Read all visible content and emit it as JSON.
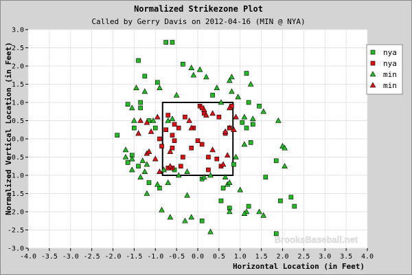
{
  "chart_data": {
    "type": "scatter",
    "title": "Normalized Strikezone Plot",
    "subtitle": "Called by Gerry Davis on 2012-04-16 (MIN @ NYA)",
    "xlabel": "Horizontal Location (in Feet)",
    "ylabel": "Normalized Vertical Location (in Feet)",
    "xlim": [
      -4.0,
      4.0
    ],
    "ylim": [
      -3.0,
      3.0
    ],
    "x_ticks": [
      -4.0,
      -3.5,
      -3.0,
      -2.5,
      -2.0,
      -1.5,
      -1.0,
      -0.5,
      0.0,
      0.5,
      1.0,
      1.5,
      2.0,
      2.5,
      3.0,
      3.5,
      4.0
    ],
    "x_tick_labels": [
      "-4.0",
      "-3.5",
      "-3.0",
      "-2.5",
      "-2.0",
      "-1.5",
      "-1.0",
      "-0.5",
      "0.0",
      "0.5",
      "1.0",
      "1.5",
      "2.0",
      "2.5",
      "3.0",
      "3.5",
      "4.0"
    ],
    "y_ticks": [
      3.0,
      2.5,
      2.0,
      1.5,
      1.0,
      0.5,
      0.0,
      -0.5,
      -1.0,
      -1.5,
      -2.0,
      -2.5,
      -3.0
    ],
    "y_tick_labels": [
      "3.0",
      "2.5",
      "2.0",
      "1.5",
      "1.0",
      "0.5",
      "0.0",
      "-0.5",
      "-1.0",
      "-1.5",
      "-2.0",
      "-2.5",
      "-3.0"
    ],
    "grid": true,
    "legend_position": "top-right",
    "watermark": "BrooksBaseball.net",
    "strike_zone": {
      "x": [
        -0.83,
        0.83
      ],
      "y": [
        -1.0,
        1.0
      ]
    },
    "series": [
      {
        "name": "nya",
        "marker": "square",
        "color": "#22bb22",
        "points": [
          [
            -0.75,
            2.65
          ],
          [
            -0.6,
            2.65
          ],
          [
            -1.4,
            2.15
          ],
          [
            -1.25,
            1.72
          ],
          [
            -0.95,
            1.55
          ],
          [
            -0.35,
            2.05
          ],
          [
            0.35,
            1.2
          ],
          [
            1.15,
            1.8
          ],
          [
            1.2,
            1.0
          ],
          [
            1.45,
            0.9
          ],
          [
            -1.65,
            0.95
          ],
          [
            -1.35,
            1.0
          ],
          [
            -1.35,
            0.85
          ],
          [
            -1.15,
            0.5
          ],
          [
            -1.0,
            0.3
          ],
          [
            -1.5,
            0.3
          ],
          [
            -1.9,
            0.1
          ],
          [
            1.05,
            0.45
          ],
          [
            1.15,
            0.3
          ],
          [
            1.25,
            -0.1
          ],
          [
            0.85,
            -0.7
          ],
          [
            1.85,
            -0.6
          ],
          [
            -1.55,
            -0.45
          ],
          [
            -1.4,
            -0.75
          ],
          [
            -1.15,
            -1.2
          ],
          [
            -0.55,
            -0.85
          ],
          [
            -0.9,
            -1.35
          ],
          [
            0.1,
            -1.1
          ],
          [
            0.6,
            -1.35
          ],
          [
            1.6,
            -1.05
          ],
          [
            1.95,
            -1.7
          ],
          [
            2.2,
            -1.6
          ],
          [
            2.28,
            -1.85
          ],
          [
            1.2,
            -1.85
          ],
          [
            0.75,
            -1.9
          ],
          [
            0.55,
            -1.7
          ],
          [
            0.1,
            -2.25
          ],
          [
            1.85,
            -2.6
          ],
          [
            -1.65,
            -0.65
          ],
          [
            1.3,
            0.4
          ]
        ]
      },
      {
        "name": "nya",
        "marker": "square",
        "color": "#dd1111",
        "points": [
          [
            -0.7,
            0.65
          ],
          [
            -0.55,
            0.4
          ],
          [
            -0.45,
            0.3
          ],
          [
            -0.6,
            0.1
          ],
          [
            -0.9,
            0.0
          ],
          [
            -0.85,
            -0.2
          ],
          [
            -0.3,
            0.6
          ],
          [
            0.05,
            0.9
          ],
          [
            0.1,
            0.85
          ],
          [
            0.15,
            0.7
          ],
          [
            0.5,
            0.6
          ],
          [
            0.8,
            0.9
          ],
          [
            0.75,
            0.3
          ],
          [
            0.65,
            0.15
          ],
          [
            -0.1,
            0.3
          ],
          [
            0.0,
            -0.05
          ],
          [
            -0.55,
            -0.05
          ],
          [
            -0.6,
            -0.25
          ],
          [
            -0.35,
            -0.5
          ],
          [
            -0.15,
            -0.25
          ],
          [
            0.1,
            -0.15
          ],
          [
            0.25,
            -0.5
          ],
          [
            0.45,
            -0.55
          ],
          [
            0.55,
            -0.75
          ],
          [
            -0.4,
            -0.75
          ],
          [
            -0.6,
            -0.8
          ],
          [
            -0.7,
            -0.8
          ],
          [
            0.25,
            -0.85
          ],
          [
            -0.75,
            0.25
          ]
        ]
      },
      {
        "name": "min",
        "marker": "triangle",
        "color": "#22bb22",
        "points": [
          [
            0.05,
            1.9
          ],
          [
            -0.15,
            1.95
          ],
          [
            0.2,
            1.7
          ],
          [
            -0.1,
            1.75
          ],
          [
            -0.5,
            1.2
          ],
          [
            -0.9,
            1.4
          ],
          [
            -1.45,
            1.4
          ],
          [
            -1.25,
            1.3
          ],
          [
            -1.55,
            0.85
          ],
          [
            -1.5,
            0.5
          ],
          [
            -1.05,
            0.5
          ],
          [
            -0.7,
            0.5
          ],
          [
            -0.6,
            0.55
          ],
          [
            0.45,
            1.4
          ],
          [
            0.75,
            1.6
          ],
          [
            0.55,
            1.0
          ],
          [
            0.8,
            1.7
          ],
          [
            0.8,
            1.3
          ],
          [
            0.95,
            1.15
          ],
          [
            1.25,
            1.5
          ],
          [
            1.55,
            0.75
          ],
          [
            -1.7,
            -0.3
          ],
          [
            -1.7,
            -0.5
          ],
          [
            -1.55,
            -0.85
          ],
          [
            -1.3,
            -0.6
          ],
          [
            -1.25,
            -0.9
          ],
          [
            -1.35,
            -1.05
          ],
          [
            -1.2,
            -1.5
          ],
          [
            -0.95,
            -1.25
          ],
          [
            -0.8,
            -0.85
          ],
          [
            -0.45,
            -1.0
          ],
          [
            -0.25,
            -0.9
          ],
          [
            -0.25,
            -1.55
          ],
          [
            -0.85,
            -1.95
          ],
          [
            -0.65,
            -2.15
          ],
          [
            -0.3,
            -2.25
          ],
          [
            0.15,
            -1.05
          ],
          [
            0.3,
            -1.0
          ],
          [
            0.65,
            -1.05
          ],
          [
            0.7,
            -1.25
          ],
          [
            0.75,
            -1.2
          ],
          [
            0.9,
            -0.5
          ],
          [
            1.1,
            -0.15
          ],
          [
            1.1,
            0.6
          ],
          [
            1.3,
            0.55
          ],
          [
            1.9,
            0.5
          ],
          [
            2.0,
            -0.2
          ],
          [
            2.05,
            -0.25
          ],
          [
            2.05,
            -0.75
          ],
          [
            1.0,
            -1.4
          ],
          [
            0.75,
            -2.0
          ],
          [
            1.15,
            -2.0
          ],
          [
            1.1,
            -2.05
          ],
          [
            1.45,
            -2.0
          ],
          [
            1.55,
            -2.1
          ],
          [
            0.3,
            -2.55
          ],
          [
            -0.15,
            -2.15
          ],
          [
            -1.2,
            -0.7
          ],
          [
            -1.55,
            -0.55
          ],
          [
            -0.7,
            -1.2
          ]
        ]
      },
      {
        "name": "min",
        "marker": "triangle",
        "color": "#dd1111",
        "points": [
          [
            0.15,
            0.8
          ],
          [
            0.2,
            0.65
          ],
          [
            0.35,
            0.7
          ],
          [
            0.9,
            0.6
          ],
          [
            0.75,
            0.85
          ],
          [
            -1.35,
            0.5
          ],
          [
            -1.4,
            0.15
          ],
          [
            -1.1,
            0.2
          ],
          [
            -1.2,
            -0.4
          ],
          [
            -1.0,
            -0.55
          ],
          [
            -0.9,
            -0.9
          ],
          [
            -0.65,
            -0.75
          ],
          [
            -0.65,
            -0.35
          ],
          [
            -0.2,
            0.5
          ],
          [
            -0.15,
            0.3
          ],
          [
            0.65,
            0.2
          ],
          [
            0.75,
            0.3
          ],
          [
            0.85,
            0.25
          ],
          [
            0.7,
            -0.45
          ],
          [
            0.6,
            -0.7
          ],
          [
            0.35,
            -0.3
          ],
          [
            -1.2,
            0.45
          ],
          [
            -1.15,
            -0.35
          ],
          [
            -0.95,
            0.6
          ]
        ]
      }
    ]
  }
}
